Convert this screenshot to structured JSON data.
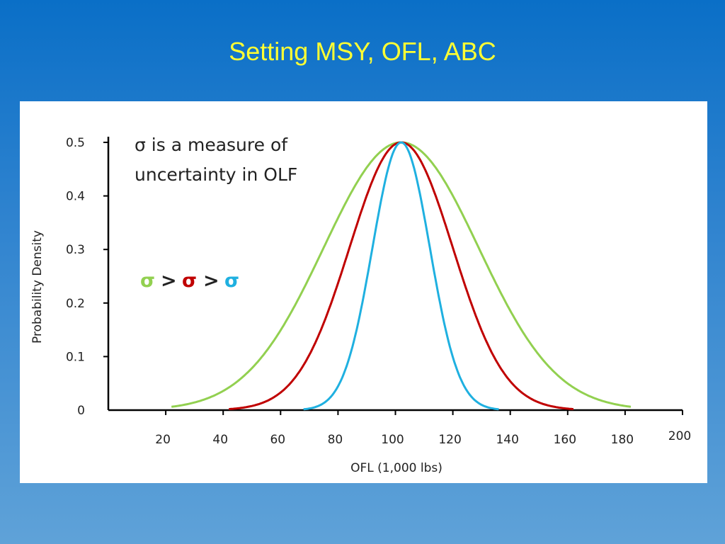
{
  "slide": {
    "title": "Setting MSY, OFL, ABC"
  },
  "chart_data": {
    "type": "line",
    "title": "",
    "xlabel": "OFL (1,000 lbs)",
    "ylabel": "Probability Density",
    "xlim": [
      0,
      200
    ],
    "ylim": [
      0,
      0.5
    ],
    "x_ticks": [
      20,
      40,
      60,
      80,
      100,
      120,
      140,
      160,
      180,
      200
    ],
    "y_ticks": [
      0,
      0.1,
      0.2,
      0.3,
      0.4,
      0.5
    ],
    "y_tick_labels": [
      "0",
      "0.1",
      "0.2",
      "0.3",
      "0.4",
      "0.5"
    ],
    "grid": false,
    "series": [
      {
        "name": "sigma-large",
        "color": "#92d050",
        "mean": 102,
        "sd": 27,
        "peak": 0.5,
        "x_range": [
          22,
          182
        ]
      },
      {
        "name": "sigma-medium",
        "color": "#c00000",
        "mean": 102,
        "sd": 18,
        "peak": 0.5,
        "x_range": [
          42,
          162
        ]
      },
      {
        "name": "sigma-small",
        "color": "#1fb0e0",
        "mean": 102,
        "sd": 10,
        "peak": 0.5,
        "x_range": [
          68,
          136
        ]
      }
    ],
    "annotations": {
      "note_line1": "σ is a measure of",
      "note_line2": "uncertainty in OLF",
      "sigma_symbol": "σ",
      "greater_than": ">",
      "sigma_colors": [
        "#92d050",
        "#c00000",
        "#1fb0e0"
      ]
    }
  }
}
